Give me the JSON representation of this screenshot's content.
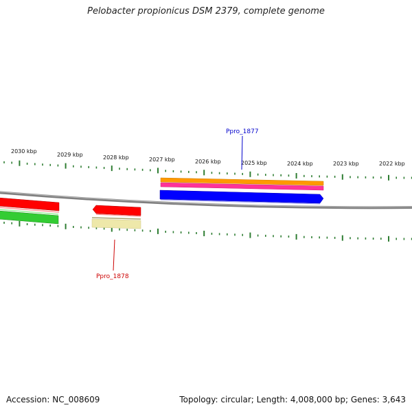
{
  "title": "Pelobacter propionicus DSM 2379, complete genome",
  "scale_labels": [
    "2030 kbp",
    "2029 kbp",
    "2028 kbp",
    "2027 kbp",
    "2026 kbp",
    "2025 kbp",
    "2024 kbp",
    "2023 kbp",
    "2022 kbp"
  ],
  "gene_labels": {
    "upper": {
      "text": "Ppro_1877",
      "color": "#0000cc"
    },
    "lower": {
      "text": "Ppro_1878",
      "color": "#cc0000"
    }
  },
  "footer": {
    "accession": "Accession: NC_008609",
    "summary": "Topology: circular; Length: 4,008,000 bp; Genes: 3,643"
  },
  "colors": {
    "backbone": "#808080",
    "ticks": "#2e7d32",
    "orange": "#ff9900",
    "magenta": "#ff3399",
    "blue": "#0000ff",
    "red": "#ff0000",
    "green": "#33cc33",
    "khaki": "#eee8aa"
  }
}
